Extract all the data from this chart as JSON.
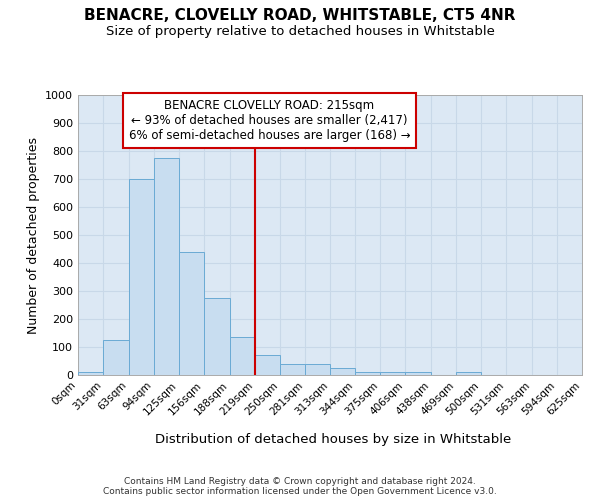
{
  "title": "BENACRE, CLOVELLY ROAD, WHITSTABLE, CT5 4NR",
  "subtitle": "Size of property relative to detached houses in Whitstable",
  "xlabel": "Distribution of detached houses by size in Whitstable",
  "ylabel": "Number of detached properties",
  "bin_edges": [
    0,
    31,
    63,
    94,
    125,
    156,
    188,
    219,
    250,
    281,
    313,
    344,
    375,
    406,
    438,
    469,
    500,
    531,
    563,
    594,
    625
  ],
  "bar_heights": [
    10,
    125,
    700,
    775,
    440,
    275,
    135,
    70,
    40,
    38,
    25,
    12,
    12,
    10,
    0,
    10,
    0,
    0,
    0,
    0
  ],
  "bar_color": "#c8ddf0",
  "bar_edge_color": "#6aaad4",
  "grid_color": "#c8d8e8",
  "plot_bg_color": "#dce8f4",
  "figure_bg_color": "#ffffff",
  "vline_x": 219,
  "vline_color": "#cc0000",
  "ylim": [
    0,
    1000
  ],
  "annotation_line1": "BENACRE CLOVELLY ROAD: 215sqm",
  "annotation_line2": "← 93% of detached houses are smaller (2,417)",
  "annotation_line3": "6% of semi-detached houses are larger (168) →",
  "annotation_box_color": "#cc0000",
  "footer1": "Contains HM Land Registry data © Crown copyright and database right 2024.",
  "footer2": "Contains public sector information licensed under the Open Government Licence v3.0.",
  "tick_labels": [
    "0sqm",
    "31sqm",
    "63sqm",
    "94sqm",
    "125sqm",
    "156sqm",
    "188sqm",
    "219sqm",
    "250sqm",
    "281sqm",
    "313sqm",
    "344sqm",
    "375sqm",
    "406sqm",
    "438sqm",
    "469sqm",
    "500sqm",
    "531sqm",
    "563sqm",
    "594sqm",
    "625sqm"
  ],
  "yticks": [
    0,
    100,
    200,
    300,
    400,
    500,
    600,
    700,
    800,
    900,
    1000
  ],
  "title_fontsize": 11,
  "subtitle_fontsize": 9.5,
  "ylabel_fontsize": 9,
  "xlabel_fontsize": 9.5,
  "tick_fontsize": 7.5,
  "footer_fontsize": 6.5,
  "annotation_fontsize": 8.5
}
